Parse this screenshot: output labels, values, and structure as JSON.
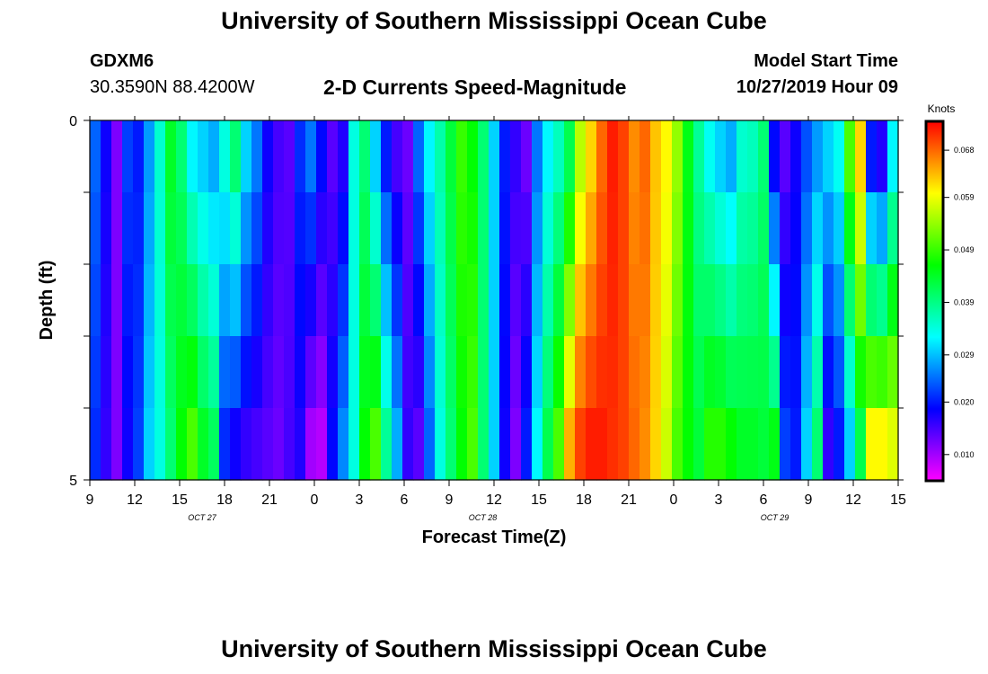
{
  "header": {
    "title": "University of Southern Mississippi Ocean Cube",
    "station_id": "GDXM6",
    "station_location": "30.3590N 88.4200W",
    "chart_title": "2-D Currents Speed-Magnitude",
    "model_label": "Model Start Time",
    "model_time": "10/27/2019 Hour 09"
  },
  "footer": {
    "title": "University of Southern Mississippi Ocean Cube"
  },
  "chart_data": {
    "type": "heatmap",
    "title": "2-D Currents Speed-Magnitude",
    "xlabel": "Forecast Time(Z)",
    "ylabel": "Depth (ft)",
    "x_tick_labels": [
      "9",
      "12",
      "15",
      "18",
      "21",
      "0",
      "3",
      "6",
      "9",
      "12",
      "15",
      "18",
      "21",
      "0",
      "3",
      "6",
      "9",
      "12",
      "15"
    ],
    "date_labels": [
      {
        "label": "OCT 27",
        "tick_index": 2.5
      },
      {
        "label": "OCT 28",
        "tick_index": 8.75
      },
      {
        "label": "OCT 29",
        "tick_index": 15.25
      }
    ],
    "y_tick_labels": [
      "0",
      "5"
    ],
    "ylim": [
      0,
      5
    ],
    "x_hours_range": [
      0,
      54
    ],
    "depth_layers": 5,
    "colorbar": {
      "unit_label": "Knots",
      "ticks": [
        "0.068",
        "0.059",
        "0.049",
        "0.039",
        "0.029",
        "0.020",
        "0.010"
      ],
      "tick_values": [
        0.068,
        0.059,
        0.049,
        0.039,
        0.029,
        0.02,
        0.01
      ],
      "vmin": 0.005,
      "vmax": 0.0735,
      "stops": [
        "#ff00ff",
        "#8000ff",
        "#0000ff",
        "#0080ff",
        "#00ffff",
        "#00ff80",
        "#00ff00",
        "#80ff00",
        "#ffff00",
        "#ff8000",
        "#ff0000"
      ]
    },
    "surface_speed": [
      0.024,
      0.018,
      0.012,
      0.022,
      0.02,
      0.027,
      0.035,
      0.044,
      0.04,
      0.032,
      0.03,
      0.028,
      0.034,
      0.04,
      0.03,
      0.025,
      0.018,
      0.015,
      0.014,
      0.021,
      0.025,
      0.019,
      0.014,
      0.017,
      0.034,
      0.04,
      0.03,
      0.02,
      0.015,
      0.013,
      0.024,
      0.032,
      0.037,
      0.043,
      0.049,
      0.046,
      0.04,
      0.03,
      0.02,
      0.016,
      0.013,
      0.025,
      0.032,
      0.036,
      0.042,
      0.056,
      0.062,
      0.068,
      0.072,
      0.07,
      0.066,
      0.068,
      0.063,
      0.06,
      0.054,
      0.045,
      0.038,
      0.033,
      0.03,
      0.028,
      0.035,
      0.036,
      0.04,
      0.019,
      0.014,
      0.018,
      0.023,
      0.027,
      0.03,
      0.033,
      0.05,
      0.062,
      0.02,
      0.017,
      0.032,
      0.04,
      0.045,
      0.05,
      0.054
    ],
    "bottom_speed": [
      0.021,
      0.016,
      0.012,
      0.018,
      0.022,
      0.03,
      0.034,
      0.04,
      0.046,
      0.05,
      0.044,
      0.041,
      0.021,
      0.018,
      0.016,
      0.015,
      0.014,
      0.013,
      0.015,
      0.017,
      0.01,
      0.009,
      0.019,
      0.026,
      0.034,
      0.046,
      0.05,
      0.038,
      0.028,
      0.016,
      0.014,
      0.024,
      0.034,
      0.04,
      0.046,
      0.05,
      0.04,
      0.03,
      0.018,
      0.012,
      0.02,
      0.032,
      0.042,
      0.05,
      0.064,
      0.07,
      0.072,
      0.072,
      0.071,
      0.07,
      0.068,
      0.066,
      0.062,
      0.057,
      0.05,
      0.046,
      0.043,
      0.048,
      0.048,
      0.046,
      0.044,
      0.044,
      0.043,
      0.045,
      0.022,
      0.02,
      0.03,
      0.04,
      0.016,
      0.02,
      0.03,
      0.042,
      0.06,
      0.06,
      0.058
    ]
  }
}
